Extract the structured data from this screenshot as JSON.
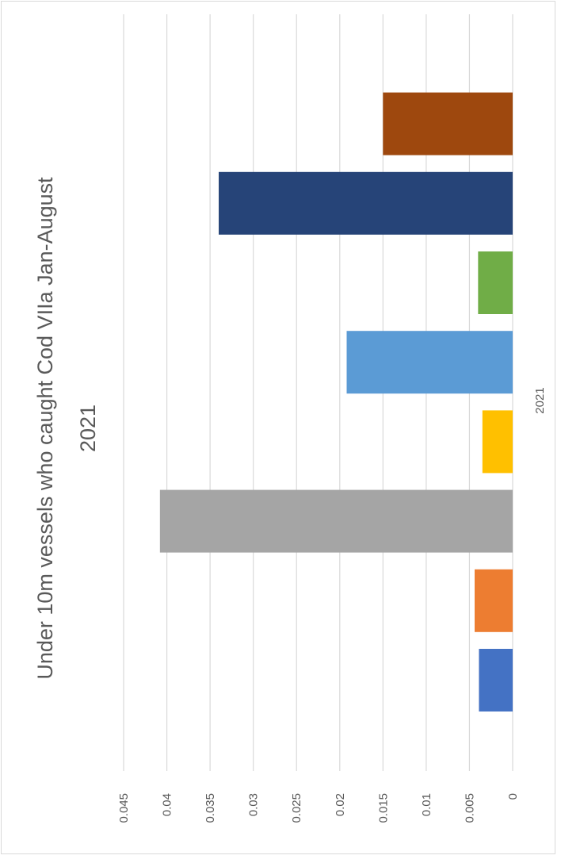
{
  "chart_data": {
    "type": "bar",
    "title_lines": [
      "Under 10m vessels who caught Cod VIIa Jan-August",
      "2021"
    ],
    "category": "2021",
    "series": [
      {
        "value": 0.0039,
        "color": "#4472C4"
      },
      {
        "value": 0.0044,
        "color": "#ED7D31"
      },
      {
        "value": 0.0408,
        "color": "#A5A5A5"
      },
      {
        "value": 0.0035,
        "color": "#FFC000"
      },
      {
        "value": 0.0192,
        "color": "#5B9BD5"
      },
      {
        "value": 0.004,
        "color": "#70AD47"
      },
      {
        "value": 0.034,
        "color": "#264478"
      },
      {
        "value": 0.015,
        "color": "#9E480E"
      }
    ],
    "ylim": [
      0,
      0.045
    ],
    "ticks": [
      "0",
      "0.005",
      "0.01",
      "0.015",
      "0.02",
      "0.025",
      "0.03",
      "0.035",
      "0.04",
      "0.045"
    ],
    "grid": true,
    "rotation": "page rotated 90 degrees clockwise"
  }
}
